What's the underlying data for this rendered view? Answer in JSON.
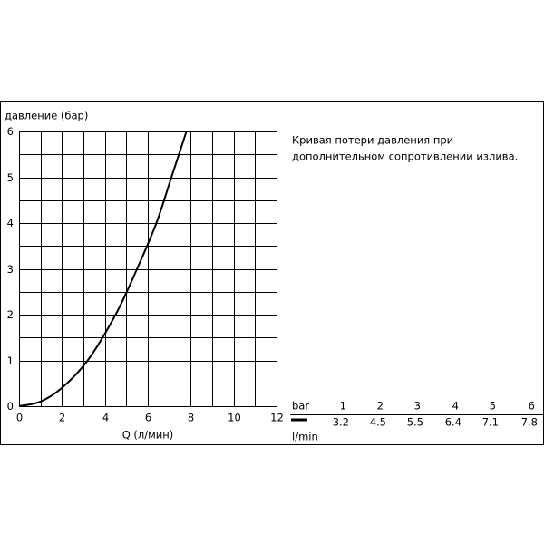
{
  "chart_data": {
    "type": "line",
    "y_label": "давление (бар)",
    "x_label": "Q (л/мин)",
    "x": [
      0,
      1,
      2,
      3.2,
      4.5,
      5.5,
      6.4,
      7.1,
      7.8
    ],
    "values": [
      0,
      0.1,
      0.4,
      1,
      2,
      3,
      4,
      5,
      6
    ],
    "color": "#000000",
    "xlim": [
      0,
      12
    ],
    "xticks": [
      0,
      2,
      4,
      6,
      8,
      10,
      12
    ],
    "ylim": [
      0,
      6
    ],
    "yticks": [
      0,
      1,
      2,
      3,
      4,
      5,
      6
    ],
    "grid": true
  },
  "description": [
    "Кривая потери давления при",
    "дополнительном сопротивлении излива."
  ],
  "table": {
    "row_labels": [
      "bar",
      "l/min"
    ],
    "bar": [
      "1",
      "2",
      "3",
      "4",
      "5",
      "6"
    ],
    "l_min": [
      "3.2",
      "4.5",
      "5.5",
      "6.4",
      "7.1",
      "7.8"
    ]
  }
}
